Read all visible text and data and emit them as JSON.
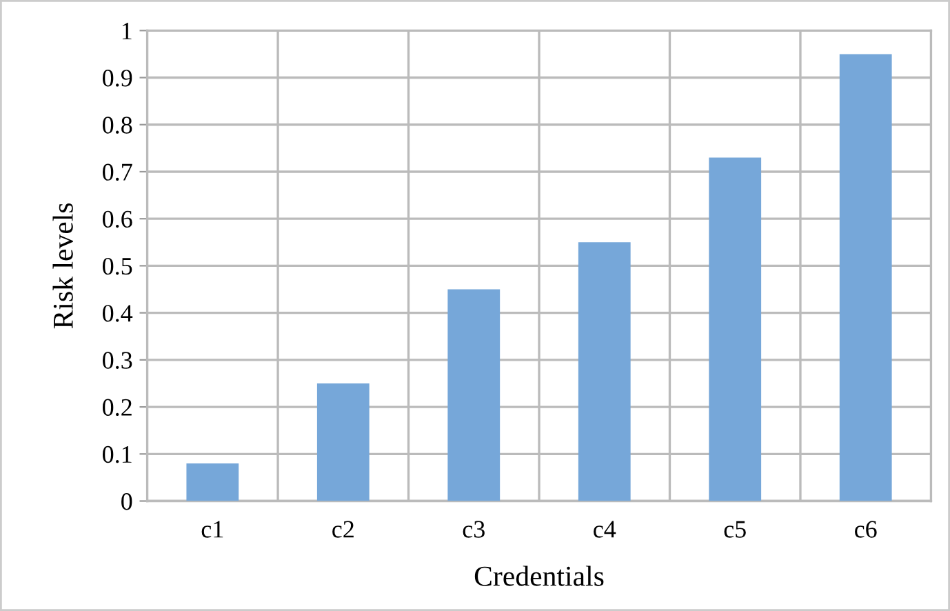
{
  "chart_data": {
    "type": "bar",
    "xlabel": "Credentials",
    "ylabel": "Risk levels",
    "categories": [
      "c1",
      "c2",
      "c3",
      "c4",
      "c5",
      "c6"
    ],
    "values": [
      0.08,
      0.25,
      0.45,
      0.55,
      0.73,
      0.95
    ],
    "color": "#76a7d9",
    "ylim": [
      0,
      1
    ],
    "yticks": [
      0,
      0.1,
      0.2,
      0.3,
      0.4,
      0.5,
      0.6,
      0.7,
      0.8,
      0.9,
      1
    ],
    "grid": true
  }
}
